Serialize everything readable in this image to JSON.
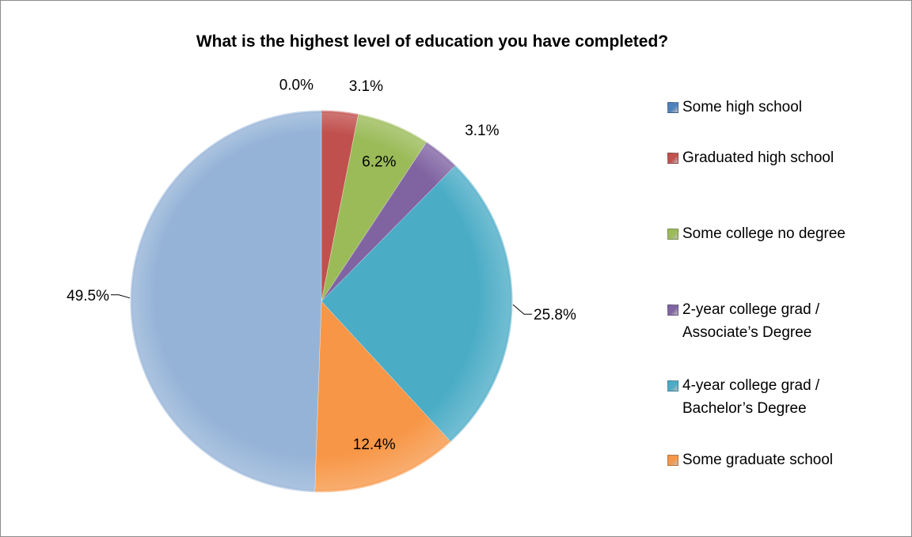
{
  "chart_data": {
    "type": "pie",
    "title": "What is the highest level of education you have completed?",
    "legend_position": "right",
    "slices": [
      {
        "label": "Some high school",
        "value": 0.0,
        "display": "0.0%",
        "color": "#4f81bd"
      },
      {
        "label": "Graduated high school",
        "value": 3.1,
        "display": "3.1%",
        "color": "#c0504d"
      },
      {
        "label": "Some college no degree",
        "value": 6.2,
        "display": "6.2%",
        "color": "#9bbb59"
      },
      {
        "label": "2-year college grad / Associate’s Degree",
        "value": 3.1,
        "display": "3.1%",
        "color": "#8064a2"
      },
      {
        "label": "4-year college grad / Bachelor’s Degree",
        "value": 25.8,
        "display": "25.8%",
        "color": "#4bacc6"
      },
      {
        "label": "Some graduate school",
        "value": 12.4,
        "display": "12.4%",
        "color": "#f79646"
      },
      {
        "label": "",
        "value": 49.5,
        "display": "49.5%",
        "color": "#95b3d7"
      }
    ]
  }
}
